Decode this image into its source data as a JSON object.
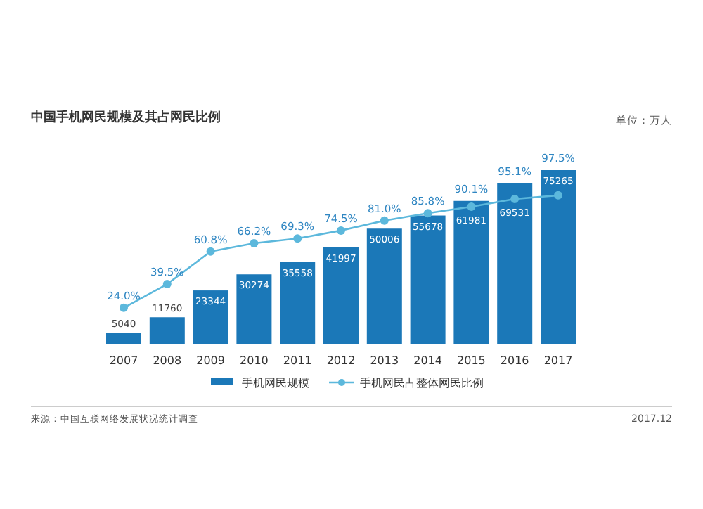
{
  "chart_data": {
    "type": "bar",
    "title": "中国手机网民规模及其占网民比例",
    "categories": [
      "2007",
      "2008",
      "2009",
      "2010",
      "2011",
      "2012",
      "2013",
      "2014",
      "2015",
      "2016",
      "2017"
    ],
    "series": [
      {
        "name": "手机网民规模",
        "color": "#1b78b8",
        "values": [
          5040,
          11760,
          23344,
          30274,
          35558,
          41997,
          50006,
          55678,
          61981,
          69531,
          75265
        ]
      },
      {
        "name": "手机网民占整体网民比例",
        "type": "line",
        "axis": "y2",
        "color": "#5cb8dc",
        "marker": "circle",
        "values": [
          24.0,
          39.5,
          60.8,
          66.2,
          69.3,
          74.5,
          81.0,
          85.8,
          90.1,
          95.1,
          97.5
        ],
        "value_labels": [
          "24.0%",
          "39.5%",
          "60.8%",
          "66.2%",
          "69.3%",
          "74.5%",
          "81.0%",
          "85.8%",
          "90.1%",
          "95.1%",
          "97.5%"
        ]
      }
    ],
    "data_labels": true,
    "legend": "bottom",
    "grid": false,
    "annotations": [
      "单位：万人",
      "来源：中国互联网络发展状况统计调查",
      "2017.12"
    ]
  }
}
